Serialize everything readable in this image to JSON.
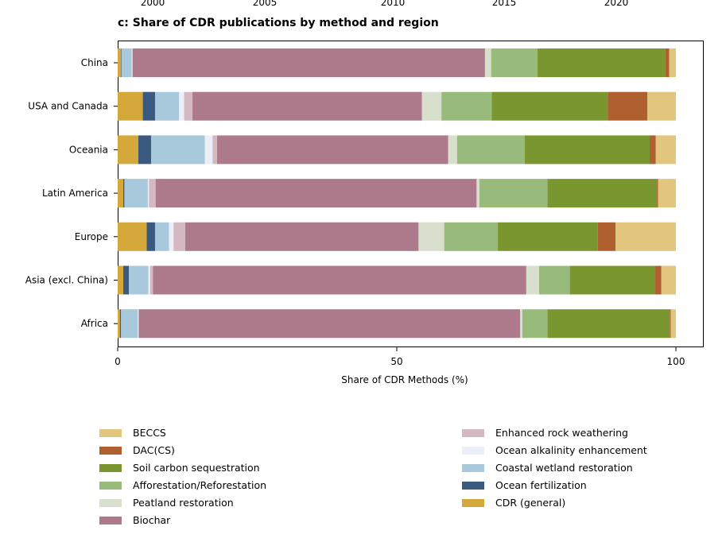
{
  "top_axis": {
    "tick_labels": [
      "2000",
      "2005",
      "2010",
      "2015",
      "2020"
    ]
  },
  "chart_data": {
    "type": "bar",
    "orientation": "horizontal",
    "stacked": true,
    "title": "c: Share of CDR publications by method and region",
    "xlabel": "Share of CDR Methods (%)",
    "ylabel": "",
    "xlim": [
      0,
      100
    ],
    "x_ticks": [
      0,
      50,
      100
    ],
    "grid": false,
    "legend_position": "bottom",
    "categories": [
      "China",
      "USA and Canada",
      "Oceania",
      "Latin America",
      "Europe",
      "Asia (excl. China)",
      "Africa"
    ],
    "series": [
      {
        "name": "CDR (general)",
        "color": "#d4a83a",
        "values": [
          0.6,
          4.5,
          3.7,
          1.0,
          5.2,
          1.0,
          0.4
        ]
      },
      {
        "name": "Ocean fertilization",
        "color": "#3a5a80",
        "values": [
          0.1,
          2.2,
          2.3,
          0.2,
          1.5,
          1.0,
          0.2
        ]
      },
      {
        "name": "Coastal wetland restoration",
        "color": "#a8c8dc",
        "values": [
          1.8,
          4.3,
          9.6,
          4.2,
          2.5,
          3.5,
          3.0
        ]
      },
      {
        "name": "Ocean alkalinity enhancement",
        "color": "#eceef8",
        "values": [
          0.1,
          0.9,
          1.4,
          0.2,
          0.8,
          0.3,
          0.1
        ]
      },
      {
        "name": "Enhanced rock weathering",
        "color": "#d4b8c2",
        "values": [
          0.1,
          1.5,
          0.8,
          1.2,
          2.1,
          0.5,
          0.1
        ]
      },
      {
        "name": "Biochar",
        "color": "#ad7a8b",
        "values": [
          63.1,
          41.1,
          41.4,
          57.5,
          41.8,
          66.9,
          68.3
        ]
      },
      {
        "name": "Peatland restoration",
        "color": "#d8dfcc",
        "values": [
          1.1,
          3.5,
          1.6,
          0.5,
          4.6,
          2.3,
          0.4
        ]
      },
      {
        "name": "Afforestation/Reforestation",
        "color": "#98ba7a",
        "values": [
          8.3,
          9.0,
          12.1,
          12.2,
          9.6,
          5.5,
          4.5
        ]
      },
      {
        "name": "Soil carbon sequestration",
        "color": "#7a962e",
        "values": [
          22.9,
          20.8,
          22.4,
          19.6,
          17.9,
          15.3,
          21.9
        ]
      },
      {
        "name": "DAC(CS)",
        "color": "#b0602e",
        "values": [
          0.7,
          7.1,
          1.1,
          0.2,
          3.2,
          1.1,
          0.2
        ]
      },
      {
        "name": "BECCS",
        "color": "#e3c67e",
        "values": [
          1.2,
          5.1,
          3.6,
          3.2,
          10.8,
          2.6,
          0.9
        ]
      }
    ]
  },
  "legend": {
    "left": [
      {
        "label": "BECCS",
        "color": "#e3c67e"
      },
      {
        "label": "DAC(CS)",
        "color": "#b0602e"
      },
      {
        "label": "Soil carbon sequestration",
        "color": "#7a962e"
      },
      {
        "label": "Afforestation/Reforestation",
        "color": "#98ba7a"
      },
      {
        "label": "Peatland restoration",
        "color": "#d8dfcc"
      },
      {
        "label": "Biochar",
        "color": "#ad7a8b"
      }
    ],
    "right": [
      {
        "label": "Enhanced rock weathering",
        "color": "#d4b8c2"
      },
      {
        "label": "Ocean alkalinity enhancement",
        "color": "#eceef8"
      },
      {
        "label": "Coastal wetland restoration",
        "color": "#a8c8dc"
      },
      {
        "label": "Ocean fertilization",
        "color": "#3a5a80"
      },
      {
        "label": "CDR (general)",
        "color": "#d4a83a"
      }
    ]
  }
}
